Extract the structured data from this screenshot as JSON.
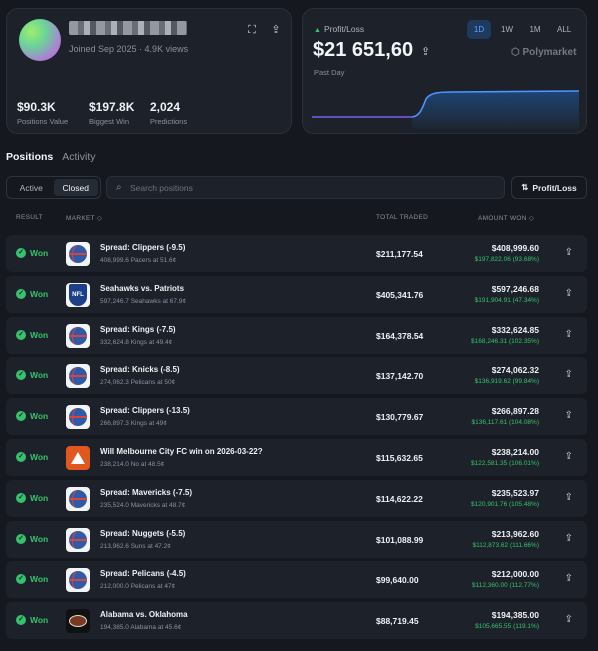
{
  "profile": {
    "joined": "Joined Sep 2025 · 4.9K views",
    "stats": [
      {
        "value": "$90.3K",
        "label": "Positions Value"
      },
      {
        "value": "$197.8K",
        "label": "Biggest Win"
      },
      {
        "value": "2,024",
        "label": "Predictions"
      }
    ]
  },
  "pnl": {
    "label": "Profit/Loss",
    "value": "$21 651,60",
    "period": "Past Day",
    "ranges": [
      "1D",
      "1W",
      "1M",
      "ALL"
    ],
    "active_range": "1D",
    "brand": "Polymarket",
    "colors": {
      "line_before": "#7b5cf0",
      "line_after": "#4f95ff",
      "fill": "#1b3a63"
    }
  },
  "tabs": {
    "positions": "Positions",
    "activity": "Activity"
  },
  "filters": {
    "active": "Active",
    "closed": "Closed",
    "selected": "Closed"
  },
  "search": {
    "placeholder": "Search positions"
  },
  "sort_button": "Profit/Loss",
  "table": {
    "headers": {
      "result": "RESULT",
      "market": "MARKET ◇",
      "total_traded": "TOTAL TRADED",
      "amount_won": "AMOUNT WON ◇"
    },
    "rows": [
      {
        "result": "Won",
        "logo": "nba",
        "title": "Spread: Clippers (-9.5)",
        "sub": "408,999.6 Pacers at 51.6¢",
        "traded": "$211,177.54",
        "amount": "$408,999.60",
        "gain": "$197,822.06 (93.68%)"
      },
      {
        "result": "Won",
        "logo": "nfl",
        "title": "Seahawks vs. Patriots",
        "sub": "597,246.7 Seahawks at 67.9¢",
        "traded": "$405,341.76",
        "amount": "$597,246.68",
        "gain": "$191,904.91 (47.34%)"
      },
      {
        "result": "Won",
        "logo": "nba",
        "title": "Spread: Kings (-7.5)",
        "sub": "332,624.8 Kings at 49.4¢",
        "traded": "$164,378.54",
        "amount": "$332,624.85",
        "gain": "$168,246.31 (102.35%)"
      },
      {
        "result": "Won",
        "logo": "nba",
        "title": "Spread: Knicks (-8.5)",
        "sub": "274,062.3 Pelicans at 50¢",
        "traded": "$137,142.70",
        "amount": "$274,062.32",
        "gain": "$136,919.62 (99.84%)"
      },
      {
        "result": "Won",
        "logo": "nba",
        "title": "Spread: Clippers (-13.5)",
        "sub": "266,897.3 Kings at 49¢",
        "traded": "$130,779.67",
        "amount": "$266,897.28",
        "gain": "$136,117.61 (104.08%)"
      },
      {
        "result": "Won",
        "logo": "aleague",
        "title": "Will Melbourne City FC win on 2026-03-22?",
        "sub": "238,214.0 No at 48.5¢",
        "traded": "$115,632.65",
        "amount": "$238,214.00",
        "gain": "$122,581.35 (106.01%)"
      },
      {
        "result": "Won",
        "logo": "nba",
        "title": "Spread: Mavericks (-7.5)",
        "sub": "235,524.0 Mavericks at 48.7¢",
        "traded": "$114,622.22",
        "amount": "$235,523.97",
        "gain": "$120,901.76 (105.48%)"
      },
      {
        "result": "Won",
        "logo": "nba",
        "title": "Spread: Nuggets (-5.5)",
        "sub": "213,962.6 Suns at 47.2¢",
        "traded": "$101,088.99",
        "amount": "$213,962.60",
        "gain": "$112,873.62 (111.66%)"
      },
      {
        "result": "Won",
        "logo": "nba",
        "title": "Spread: Pelicans (-4.5)",
        "sub": "212,000.0 Pelicans at 47¢",
        "traded": "$99,640.00",
        "amount": "$212,000.00",
        "gain": "$112,360.00 (112.77%)"
      },
      {
        "result": "Won",
        "logo": "cfb",
        "title": "Alabama vs. Oklahoma",
        "sub": "194,385.0 Alabama at 45.6¢",
        "traded": "$88,719.45",
        "amount": "$194,385.00",
        "gain": "$105,665.55 (119.1%)"
      }
    ]
  },
  "colors": {
    "won": "#35c26c",
    "accent": "#5fa2ff",
    "background": "#15191f",
    "card": "#1d222a"
  }
}
